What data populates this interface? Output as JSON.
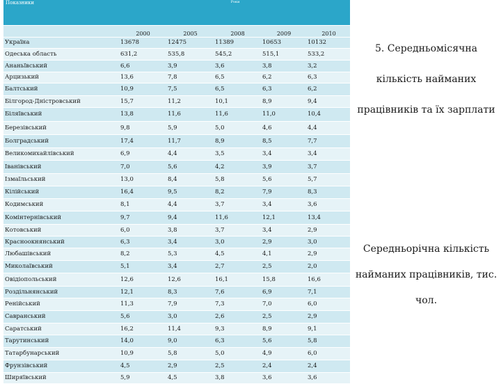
{
  "table": {
    "header_indicator": "Показники",
    "header_years": "Роки",
    "years": [
      "2000",
      "2005",
      "2008",
      "2009",
      "2010"
    ],
    "rows": [
      [
        "Україна",
        "13678",
        "12475",
        "11389",
        "10653",
        "10132"
      ],
      [
        "Одеська область",
        "631,2",
        "535,8",
        "545,2",
        "515,1",
        "533,2"
      ],
      [
        "Ананьївський",
        "6,6",
        "3,9",
        "3,6",
        "3,8",
        "3,2"
      ],
      [
        "Арцизький",
        "13,6",
        "7,8",
        "6,5",
        "6,2",
        "6,3"
      ],
      [
        "Балтський",
        "10,9",
        "7,5",
        "6,5",
        "6,3",
        "6,2"
      ],
      [
        "Білгород-Дністровський",
        "15,7",
        "11,2",
        "10,1",
        "8,9",
        "9,4"
      ],
      [
        "Біляївський",
        "13,8",
        "11,6",
        "11,6",
        "11,0",
        "10,4"
      ],
      [
        "Березівський",
        "9,8",
        "5,9",
        "5,0",
        "4,6",
        "4,4"
      ],
      [
        "Болградський",
        "17,4",
        "11,7",
        "8,9",
        "8,5",
        "7,7"
      ],
      [
        "Великомихайлівський",
        "6,9",
        "4,4",
        "3,5",
        "3,4",
        "3,4"
      ],
      [
        "Іванівський",
        "7,0",
        "5,6",
        "4,2",
        "3,9",
        "3,7"
      ],
      [
        "Ізмаїльський",
        "13,0",
        "8,4",
        "5,8",
        "5,6",
        "5,7"
      ],
      [
        "Кілійський",
        "16,4",
        "9,5",
        "8,2",
        "7,9",
        "8,3"
      ],
      [
        "Кодимський",
        "8,1",
        "4,4",
        "3,7",
        "3,4",
        "3,6"
      ],
      [
        "Комінтернівський",
        "9,7",
        "9,4",
        "11,6",
        "12,1",
        "13,4"
      ],
      [
        "Котовський",
        "6,0",
        "3,8",
        "3,7",
        "3,4",
        "2,9"
      ],
      [
        "Красноокнянський",
        "6,3",
        "3,4",
        "3,0",
        "2,9",
        "3,0"
      ],
      [
        "Любашівський",
        "8,2",
        "5,3",
        "4,5",
        "4,1",
        "2,9"
      ],
      [
        "Миколаївський",
        "5,1",
        "3,4",
        "2,7",
        "2,5",
        "2,0"
      ],
      [
        "Овідіопольський",
        "12,6",
        "12,6",
        "16,1",
        "15,8",
        "16,6"
      ],
      [
        "Роздільнянський",
        "12,1",
        "8,3",
        "7,6",
        "6,9",
        "7,1"
      ],
      [
        "Ренійський",
        "11,3",
        "7,9",
        "7,3",
        "7,0",
        "6,0"
      ],
      [
        "Савранський",
        "5,6",
        "3,0",
        "2,6",
        "2,5",
        "2,9"
      ],
      [
        "Саратський",
        "16,2",
        "11,4",
        "9,3",
        "8,9",
        "9,1"
      ],
      [
        "Тарутинський",
        "14,0",
        "9,0",
        "6,3",
        "5,6",
        "5,8"
      ],
      [
        "Татарбунарський",
        "10,9",
        "5,8",
        "5,0",
        "4,9",
        "6,0"
      ],
      [
        "Фрунзівський",
        "4,5",
        "2,9",
        "2,5",
        "2,4",
        "2,4"
      ],
      [
        "Ширяївський",
        "5,9",
        "4,5",
        "3,8",
        "3,6",
        "3,6"
      ]
    ]
  },
  "side": {
    "title_1": "5. Середньомісячна кількість найманих працівників та їх зарплати",
    "title_2": "Середньорічна кількість найманих працівників, тис. чол."
  }
}
